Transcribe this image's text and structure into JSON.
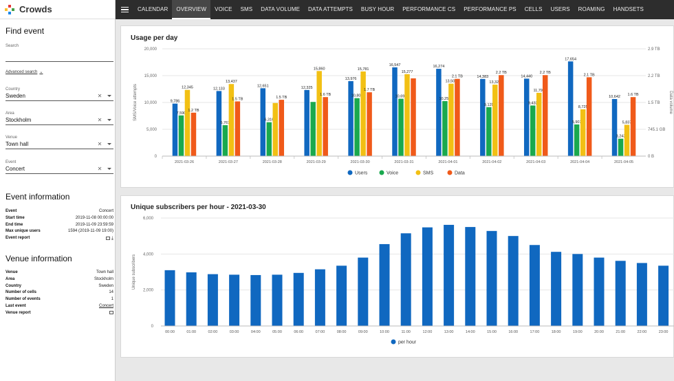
{
  "app": {
    "name": "Crowds"
  },
  "nav": {
    "tabs": [
      "CALENDAR",
      "OVERVIEW",
      "VOICE",
      "SMS",
      "DATA VOLUME",
      "DATA ATTEMPTS",
      "BUSY HOUR",
      "PERFORMANCE CS",
      "PERFORMANCE PS",
      "CELLS",
      "USERS",
      "ROAMING",
      "HANDSETS"
    ],
    "active": "OVERVIEW"
  },
  "find_event": {
    "title": "Find event",
    "search_label": "Search",
    "search_value": "",
    "advanced_label": "Advanced search",
    "country": {
      "label": "Country",
      "value": "Sweden"
    },
    "area": {
      "label": "Area",
      "value": "Stockholm"
    },
    "venue": {
      "label": "Venue",
      "value": "Town hall"
    },
    "event": {
      "label": "Event",
      "value": "Concert"
    }
  },
  "event_info": {
    "title": "Event information",
    "rows": [
      {
        "key": "Event",
        "value": "Concert"
      },
      {
        "key": "Start time",
        "value": "2019-11-08 00:00:00"
      },
      {
        "key": "End time",
        "value": "2019-11-09 23:59:59"
      },
      {
        "key": "Max unique users",
        "value": "1594 (2019-11-09 19:00)"
      },
      {
        "key": "Event report",
        "value": ""
      }
    ]
  },
  "venue_info": {
    "title": "Venue information",
    "rows": [
      {
        "key": "Venue",
        "value": "Town hall"
      },
      {
        "key": "Area",
        "value": "Stockholm"
      },
      {
        "key": "Country",
        "value": "Sweden"
      },
      {
        "key": "Number of cells",
        "value": "14"
      },
      {
        "key": "Number of events",
        "value": "1"
      },
      {
        "key": "Last event",
        "value": "Concert"
      },
      {
        "key": "Venue report",
        "value": ""
      }
    ]
  },
  "colors": {
    "users": "#1068c0",
    "voice": "#1aa94e",
    "sms": "#f2c014",
    "data": "#f05a1a"
  },
  "chart_data": [
    {
      "type": "bar",
      "title": "Usage per day",
      "ylabel": "SMS/Voice attempts",
      "y2label": "Data volume",
      "ylim": [
        0,
        20000
      ],
      "yticks": [
        "0",
        "5,000",
        "10,000",
        "15,000",
        "20,000"
      ],
      "y2ticks": [
        "0 B",
        "745.1 GB",
        "1.5 TB",
        "2.2 TB",
        "2.9 TB"
      ],
      "categories": [
        "2021-03-26",
        "2021-03-27",
        "2021-03-28",
        "2021-03-29",
        "2021-03-30",
        "2021-03-31",
        "2021-04-01",
        "2021-04-02",
        "2021-04-03",
        "2021-04-04",
        "2021-04-05"
      ],
      "series": [
        {
          "name": "Users",
          "values": [
            9786,
            12133,
            12651,
            12325,
            13976,
            16547,
            16274,
            14383,
            14440,
            17654,
            10642
          ],
          "labels": [
            "9,786",
            "12,133",
            "12,651",
            "12,325",
            "13,976",
            "16,547",
            "16,274",
            "14,383",
            "14,440",
            "17,654",
            "10,642"
          ]
        },
        {
          "name": "Voice",
          "values": [
            7590,
            5767,
            6316,
            10100,
            10803,
            10694,
            10253,
            9129,
            9433,
            5907,
            3243
          ],
          "labels": [
            "7,590",
            "5,767",
            "6,316",
            "",
            "10,803",
            "10,694",
            "10,253",
            "9,129",
            "9,433",
            "5,907",
            "3,243"
          ]
        },
        {
          "name": "SMS",
          "values": [
            12345,
            13437,
            9900,
            15860,
            15781,
            15277,
            13500,
            13323,
            11799,
            8725,
            5837
          ],
          "labels": [
            "12,345",
            "13,437",
            "",
            "15,860",
            "15,781",
            "15,277",
            "13,500",
            "13,323",
            "11,799",
            "8,725",
            "5,837"
          ]
        },
        {
          "name": "Data",
          "values": [
            8100,
            10200,
            10500,
            11000,
            11900,
            14500,
            14400,
            15100,
            15100,
            14700,
            11000
          ],
          "labels": [
            "1.2 TB",
            "1.5 TB",
            "1.5 TB",
            "1.6 TB",
            "1.7 TB",
            "",
            "2.1 TB",
            "2.2 TB",
            "2.2 TB",
            "2.1 TB",
            "1.6 TB"
          ]
        }
      ],
      "legend": "bottom"
    },
    {
      "type": "bar",
      "title": "Unique subscribers per hour - 2021-03-30",
      "ylabel": "Unique subscribers",
      "ylim": [
        0,
        6000
      ],
      "yticks": [
        "0",
        "2,000",
        "4,000",
        "6,000"
      ],
      "categories": [
        "00:00",
        "01:00",
        "02:00",
        "03:00",
        "04:00",
        "05:00",
        "06:00",
        "07:00",
        "08:00",
        "09:00",
        "10:00",
        "11:00",
        "12:00",
        "13:00",
        "14:00",
        "15:00",
        "16:00",
        "17:00",
        "18:00",
        "19:00",
        "20:00",
        "21:00",
        "22:00",
        "23:00"
      ],
      "series": [
        {
          "name": "per hour",
          "values": [
            3100,
            2980,
            2880,
            2850,
            2830,
            2850,
            2950,
            3150,
            3350,
            3800,
            4550,
            5150,
            5480,
            5620,
            5500,
            5280,
            5000,
            4500,
            4120,
            4000,
            3800,
            3620,
            3500,
            3350
          ]
        }
      ],
      "legend": "bottom"
    }
  ]
}
